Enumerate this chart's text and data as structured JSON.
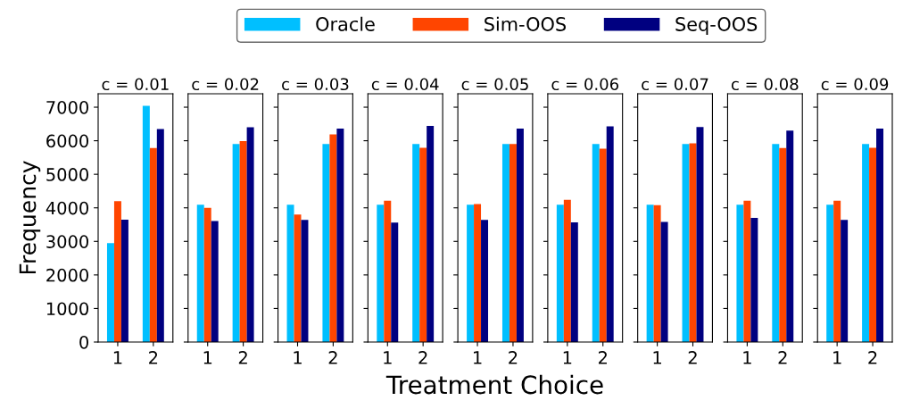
{
  "chart_data": [
    {
      "type": "bar",
      "title": "c = 0.01",
      "ylabel": "Frequency",
      "categories": [
        "1",
        "2"
      ],
      "ylim": [
        0,
        7400
      ],
      "yticks": [
        0,
        1000,
        2000,
        3000,
        4000,
        5000,
        6000,
        7000
      ],
      "legend": "top",
      "grid": false,
      "series": [
        {
          "name": "Oracle",
          "color": "#00bfff",
          "values": [
            2950,
            7040
          ]
        },
        {
          "name": "Sim-OOS",
          "color": "#ff4500",
          "values": [
            4200,
            5780
          ]
        },
        {
          "name": "Seq-OOS",
          "color": "#000080",
          "values": [
            3650,
            6350
          ]
        }
      ]
    },
    {
      "type": "bar",
      "title": "c = 0.02",
      "categories": [
        "1",
        "2"
      ],
      "ylim": [
        0,
        7400
      ],
      "yticks": [
        0,
        1000,
        2000,
        3000,
        4000,
        5000,
        6000,
        7000
      ],
      "tick_labels": "x",
      "grid": false,
      "series": [
        {
          "color": "#00bfff",
          "values": [
            4090,
            5900
          ]
        },
        {
          "color": "#ff4500",
          "values": [
            4000,
            5990
          ]
        },
        {
          "color": "#000080",
          "values": [
            3610,
            6400
          ]
        }
      ]
    },
    {
      "type": "bar",
      "title": "c = 0.03",
      "categories": [
        "1",
        "2"
      ],
      "ylim": [
        0,
        7400
      ],
      "yticks": [
        0,
        1000,
        2000,
        3000,
        4000,
        5000,
        6000,
        7000
      ],
      "tick_labels": "x",
      "grid": false,
      "series": [
        {
          "color": "#00bfff",
          "values": [
            4090,
            5900
          ]
        },
        {
          "color": "#ff4500",
          "values": [
            3800,
            6190
          ]
        },
        {
          "color": "#000080",
          "values": [
            3640,
            6360
          ]
        }
      ]
    },
    {
      "type": "bar",
      "title": "c = 0.04",
      "categories": [
        "1",
        "2"
      ],
      "ylim": [
        0,
        7400
      ],
      "yticks": [
        0,
        1000,
        2000,
        3000,
        4000,
        5000,
        6000,
        7000
      ],
      "tick_labels": "x",
      "grid": false,
      "series": [
        {
          "color": "#00bfff",
          "values": [
            4090,
            5900
          ]
        },
        {
          "color": "#ff4500",
          "values": [
            4210,
            5790
          ]
        },
        {
          "color": "#000080",
          "values": [
            3560,
            6440
          ]
        }
      ]
    },
    {
      "type": "bar",
      "title": "c = 0.05",
      "xlabel": "Treatment Choice",
      "categories": [
        "1",
        "2"
      ],
      "ylim": [
        0,
        7400
      ],
      "yticks": [
        0,
        1000,
        2000,
        3000,
        4000,
        5000,
        6000,
        7000
      ],
      "tick_labels": "x",
      "grid": false,
      "series": [
        {
          "color": "#00bfff",
          "values": [
            4090,
            5900
          ]
        },
        {
          "color": "#ff4500",
          "values": [
            4110,
            5900
          ]
        },
        {
          "color": "#000080",
          "values": [
            3640,
            6360
          ]
        }
      ]
    },
    {
      "type": "bar",
      "title": "c = 0.06",
      "categories": [
        "1",
        "2"
      ],
      "ylim": [
        0,
        7400
      ],
      "yticks": [
        0,
        1000,
        2000,
        3000,
        4000,
        5000,
        6000,
        7000
      ],
      "tick_labels": "x",
      "grid": false,
      "series": [
        {
          "color": "#00bfff",
          "values": [
            4090,
            5900
          ]
        },
        {
          "color": "#ff4500",
          "values": [
            4240,
            5760
          ]
        },
        {
          "color": "#000080",
          "values": [
            3570,
            6430
          ]
        }
      ]
    },
    {
      "type": "bar",
      "title": "c = 0.07",
      "categories": [
        "1",
        "2"
      ],
      "ylim": [
        0,
        7400
      ],
      "yticks": [
        0,
        1000,
        2000,
        3000,
        4000,
        5000,
        6000,
        7000
      ],
      "tick_labels": "x",
      "grid": false,
      "series": [
        {
          "color": "#00bfff",
          "values": [
            4090,
            5900
          ]
        },
        {
          "color": "#ff4500",
          "values": [
            4080,
            5920
          ]
        },
        {
          "color": "#000080",
          "values": [
            3580,
            6410
          ]
        }
      ]
    },
    {
      "type": "bar",
      "title": "c = 0.08",
      "categories": [
        "1",
        "2"
      ],
      "ylim": [
        0,
        7400
      ],
      "yticks": [
        0,
        1000,
        2000,
        3000,
        4000,
        5000,
        6000,
        7000
      ],
      "tick_labels": "x",
      "grid": false,
      "series": [
        {
          "color": "#00bfff",
          "values": [
            4090,
            5900
          ]
        },
        {
          "color": "#ff4500",
          "values": [
            4210,
            5780
          ]
        },
        {
          "color": "#000080",
          "values": [
            3700,
            6300
          ]
        }
      ]
    },
    {
      "type": "bar",
      "title": "c = 0.09",
      "categories": [
        "1",
        "2"
      ],
      "ylim": [
        0,
        7400
      ],
      "yticks": [
        0,
        1000,
        2000,
        3000,
        4000,
        5000,
        6000,
        7000
      ],
      "tick_labels": "x",
      "grid": false,
      "series": [
        {
          "color": "#00bfff",
          "values": [
            4090,
            5900
          ]
        },
        {
          "color": "#ff4500",
          "values": [
            4210,
            5790
          ]
        },
        {
          "color": "#000080",
          "values": [
            3640,
            6360
          ]
        }
      ]
    }
  ]
}
